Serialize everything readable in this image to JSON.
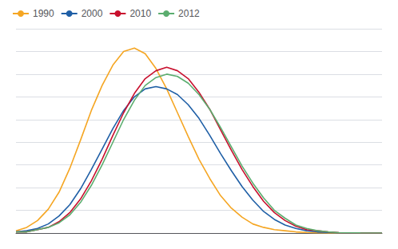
{
  "chart_data": {
    "type": "line",
    "x": [
      15,
      16,
      17,
      18,
      19,
      20,
      21,
      22,
      23,
      24,
      25,
      26,
      27,
      28,
      29,
      30,
      31,
      32,
      33,
      34,
      35,
      36,
      37,
      38,
      39,
      40,
      41,
      42,
      43,
      44,
      45,
      46,
      47,
      48,
      49
    ],
    "series": [
      {
        "name": "1990",
        "color": "#F5A623",
        "values": [
          0.002,
          0.005,
          0.011,
          0.021,
          0.036,
          0.057,
          0.082,
          0.108,
          0.13,
          0.148,
          0.16,
          0.163,
          0.158,
          0.145,
          0.127,
          0.106,
          0.085,
          0.065,
          0.048,
          0.033,
          0.022,
          0.014,
          0.008,
          0.005,
          0.003,
          0.002,
          0.001,
          0.0005,
          0.0002,
          0.0001,
          5e-05,
          2e-05,
          1e-05,
          5e-06,
          2e-06
        ]
      },
      {
        "name": "2000",
        "color": "#1F5FA6",
        "values": [
          0.001,
          0.002,
          0.004,
          0.008,
          0.015,
          0.025,
          0.039,
          0.056,
          0.074,
          0.092,
          0.108,
          0.12,
          0.127,
          0.129,
          0.127,
          0.122,
          0.113,
          0.101,
          0.086,
          0.07,
          0.055,
          0.041,
          0.029,
          0.019,
          0.012,
          0.007,
          0.004,
          0.002,
          0.001,
          0.0005,
          0.0002,
          0.0001,
          5e-05,
          2e-05,
          1e-05
        ]
      },
      {
        "name": "2010",
        "color": "#C8102E",
        "values": [
          0.001,
          0.001,
          0.003,
          0.005,
          0.01,
          0.018,
          0.03,
          0.046,
          0.065,
          0.086,
          0.106,
          0.123,
          0.136,
          0.143,
          0.146,
          0.143,
          0.136,
          0.124,
          0.109,
          0.091,
          0.073,
          0.056,
          0.041,
          0.028,
          0.018,
          0.011,
          0.006,
          0.003,
          0.002,
          0.001,
          0.0004,
          0.0002,
          0.0001,
          3e-05,
          1e-05
        ]
      },
      {
        "name": "2012",
        "color": "#5BAD6F",
        "values": [
          0.001,
          0.001,
          0.003,
          0.005,
          0.009,
          0.016,
          0.027,
          0.042,
          0.06,
          0.08,
          0.1,
          0.117,
          0.13,
          0.137,
          0.14,
          0.138,
          0.132,
          0.122,
          0.109,
          0.093,
          0.076,
          0.059,
          0.044,
          0.031,
          0.02,
          0.013,
          0.007,
          0.004,
          0.002,
          0.001,
          0.0004,
          0.0002,
          0.0001,
          3e-05,
          1e-05
        ]
      }
    ],
    "xlim": [
      15,
      49
    ],
    "ylim": [
      0,
      0.18
    ],
    "yticks": [
      0,
      0.02,
      0.04,
      0.06,
      0.08,
      0.1,
      0.12,
      0.14,
      0.16,
      0.18
    ],
    "grid": true,
    "legend": "upper left",
    "tick_labels": false
  }
}
